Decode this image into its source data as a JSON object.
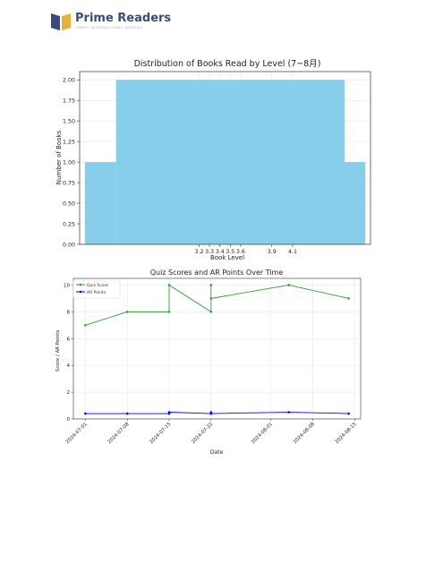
{
  "header": {
    "brand_name": "Prime Readers",
    "tagline": "SMART INTERNATIONAL READING",
    "logo_colors": {
      "blue": "#3c4a7a",
      "gold": "#e7b23c"
    }
  },
  "chart_data": [
    {
      "type": "bar",
      "title": "Distribution of Books Read by Level (7~8月)",
      "xlabel": "Book Level",
      "ylabel": "Number of Books",
      "ylim": [
        0,
        2.1
      ],
      "xlim": [
        2.05,
        4.85
      ],
      "yticks": [
        "0.00",
        "0.25",
        "0.50",
        "0.75",
        "1.00",
        "1.25",
        "1.50",
        "1.75",
        "2.00"
      ],
      "xticks": [
        "3.2",
        "3.3",
        "3.4",
        "3.5",
        "3.6",
        "3.9",
        "4.1"
      ],
      "xtick_values": [
        3.2,
        3.3,
        3.4,
        3.5,
        3.6,
        3.9,
        4.1
      ],
      "bins": [
        {
          "from": 2.1,
          "to": 2.4,
          "value": 1
        },
        {
          "from": 2.4,
          "to": 4.6,
          "value": 2
        },
        {
          "from": 4.6,
          "to": 4.8,
          "value": 1
        }
      ],
      "color": "#87ceeb",
      "grid": true
    },
    {
      "type": "line",
      "title": "Quiz Scores and AR Points Over Time",
      "xlabel": "Date",
      "ylabel": "Score / AR Points",
      "ylim": [
        0,
        10.5
      ],
      "xlim": [
        "2024-06-29",
        "2024-08-16"
      ],
      "yticks": [
        "0",
        "2",
        "4",
        "6",
        "8",
        "10"
      ],
      "xticks": [
        "2024-07-01",
        "2024-07-08",
        "2024-07-15",
        "2024-07-22",
        "2024-08-01",
        "2024-08-08",
        "2024-08-15"
      ],
      "legend_position": "top-left",
      "grid": true,
      "series": [
        {
          "name": "Quiz Score",
          "color": "#2ca02c",
          "points": [
            [
              "2024-07-01",
              7
            ],
            [
              "2024-07-08",
              8
            ],
            [
              "2024-07-15",
              8
            ],
            [
              "2024-07-15",
              10
            ],
            [
              "2024-07-22",
              8
            ],
            [
              "2024-07-22",
              10
            ],
            [
              "2024-07-22",
              9
            ],
            [
              "2024-08-04",
              10
            ],
            [
              "2024-08-14",
              9
            ]
          ]
        },
        {
          "name": "AR Points",
          "color": "#0000ff",
          "points": [
            [
              "2024-07-01",
              0.4
            ],
            [
              "2024-07-08",
              0.4
            ],
            [
              "2024-07-15",
              0.4
            ],
            [
              "2024-07-15",
              0.5
            ],
            [
              "2024-07-22",
              0.4
            ],
            [
              "2024-07-22",
              0.5
            ],
            [
              "2024-07-22",
              0.4
            ],
            [
              "2024-08-04",
              0.5
            ],
            [
              "2024-08-14",
              0.4
            ]
          ]
        }
      ]
    }
  ]
}
